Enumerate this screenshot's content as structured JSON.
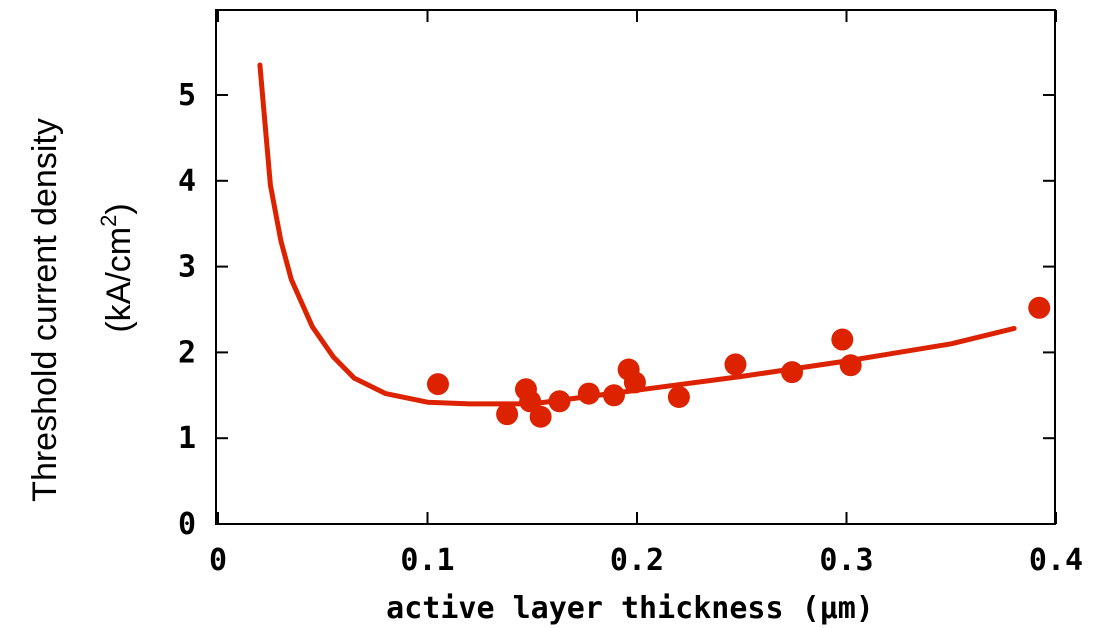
{
  "chart_data": {
    "type": "scatter",
    "xlabel": "active layer thickness (μm)",
    "ylabel_line1": "Threshold current density",
    "ylabel_line2_prefix": "(kA/cm",
    "ylabel_line2_sup": "2",
    "ylabel_line2_suffix": ")",
    "xlim": [
      0,
      0.4
    ],
    "ylim": [
      0,
      5.8
    ],
    "xticks": [
      0,
      0.1,
      0.2,
      0.3,
      0.4
    ],
    "xtick_labels": [
      "0",
      "0.1",
      "0.2",
      "0.3",
      "0.4"
    ],
    "yticks": [
      0,
      1,
      2,
      3,
      4,
      5
    ],
    "ytick_labels": [
      "0",
      "1",
      "2",
      "3",
      "4",
      "5"
    ],
    "grid": false,
    "color": "#dd2200",
    "series": [
      {
        "kind": "points",
        "x": [
          0.105,
          0.138,
          0.147,
          0.149,
          0.154,
          0.163,
          0.177,
          0.189,
          0.196,
          0.199,
          0.22,
          0.247,
          0.274,
          0.298,
          0.302,
          0.392
        ],
        "y": [
          1.63,
          1.28,
          1.57,
          1.43,
          1.25,
          1.43,
          1.52,
          1.5,
          1.8,
          1.65,
          1.48,
          1.86,
          1.77,
          2.15,
          1.85,
          2.52
        ]
      },
      {
        "kind": "line",
        "x": [
          0.02,
          0.025,
          0.03,
          0.035,
          0.045,
          0.055,
          0.065,
          0.08,
          0.1,
          0.12,
          0.15,
          0.2,
          0.25,
          0.3,
          0.35,
          0.38
        ],
        "y": [
          5.35,
          3.95,
          3.3,
          2.85,
          2.3,
          1.95,
          1.7,
          1.52,
          1.42,
          1.4,
          1.4,
          1.56,
          1.72,
          1.9,
          2.1,
          2.28
        ]
      }
    ]
  }
}
